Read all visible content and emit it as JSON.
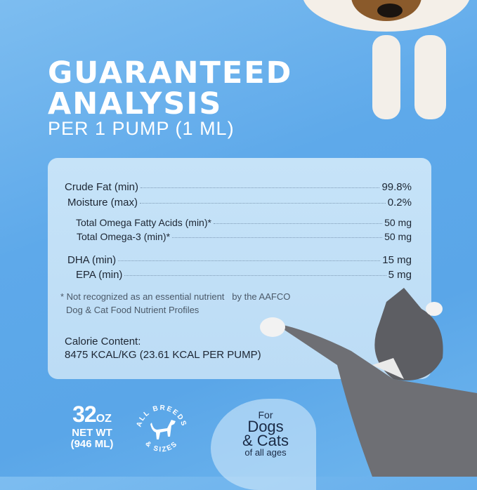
{
  "header": {
    "title_line1": "GUARANTEED",
    "title_line2": "ANALYSIS",
    "subtitle": "PER 1 PUMP (1 ML)"
  },
  "analysis": [
    {
      "label": "Crude Fat (min)",
      "value": "99.8%"
    },
    {
      "label": "Moisture (max)",
      "value": "0.2%"
    },
    {
      "label": "Total Omega Fatty Acids (min)*",
      "value": "50 mg"
    },
    {
      "label": "Total Omega-3 (min)*",
      "value": "50 mg"
    },
    {
      "label": "DHA (min)",
      "value": "15 mg"
    },
    {
      "label": "EPA (min)",
      "value": "5 mg"
    }
  ],
  "footnote": {
    "line1": "* Not recognized as an essential nutrient   by the AAFCO",
    "line2": "Dog & Cat Food Nutrient Profiles"
  },
  "calorie": {
    "label": "Calorie Content:",
    "value": "8475 KCAL/KG (23.61 KCAL PER PUMP)"
  },
  "badges": {
    "size_number": "32",
    "size_unit": "OZ",
    "net_wt": "NET WT",
    "ml": "(946 ML)",
    "breeds_top": "ALL BREEDS",
    "breeds_bottom": "& SIZES",
    "for": "For",
    "dogs": "Dogs",
    "cats": "& Cats",
    "ages": "of all ages"
  },
  "colors": {
    "background": "#5ea9ea",
    "card": "#c2e0f7",
    "text": "#1d2633"
  }
}
